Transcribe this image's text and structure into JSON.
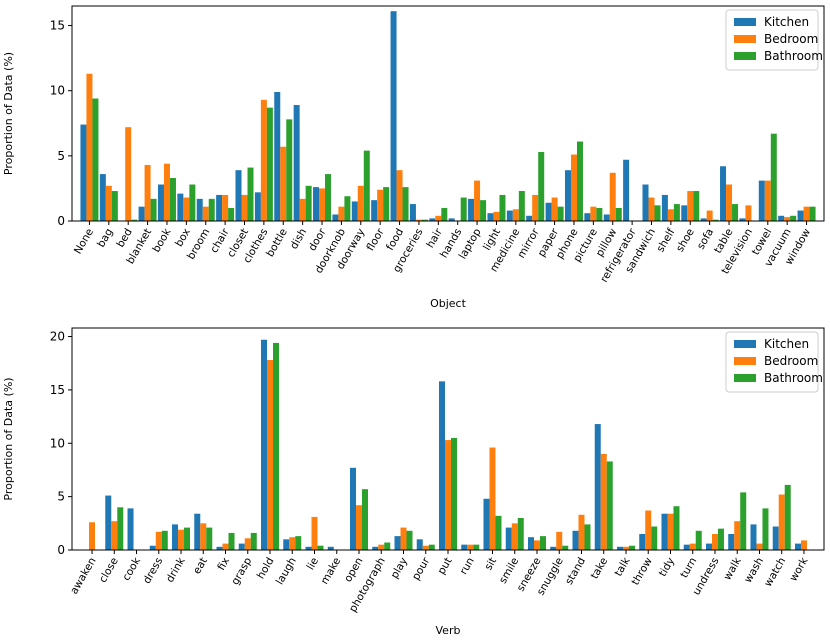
{
  "colors": {
    "Kitchen": "#1f77b4",
    "Bedroom": "#ff7f0e",
    "Bathroom": "#2ca02c"
  },
  "chart_data": [
    {
      "type": "bar",
      "xlabel": "Object",
      "ylabel": "Proportion of Data (%)",
      "ylim": [
        0,
        16.5
      ],
      "yticks": [
        0,
        5,
        10,
        15
      ],
      "legend": "top-right",
      "categories": [
        "None",
        "bag",
        "bed",
        "blanket",
        "book",
        "box",
        "broom",
        "chair",
        "closet",
        "clothes",
        "bottle",
        "dish",
        "door",
        "doorknob",
        "doorway",
        "floor",
        "food",
        "groceries",
        "hair",
        "hands",
        "laptop",
        "light",
        "medicine",
        "mirror",
        "paper",
        "phone",
        "picture",
        "pillow",
        "refrigerator",
        "sandwich",
        "shelf",
        "shoe",
        "sofa",
        "table",
        "television",
        "towel",
        "vacuum",
        "window"
      ],
      "series": [
        {
          "name": "Kitchen",
          "values": [
            7.4,
            3.6,
            0.0,
            1.1,
            2.8,
            2.1,
            1.7,
            2.0,
            3.9,
            2.2,
            9.9,
            8.9,
            2.6,
            0.5,
            1.5,
            1.6,
            16.1,
            1.3,
            0.2,
            0.2,
            1.7,
            0.6,
            0.8,
            0.4,
            1.4,
            3.9,
            0.6,
            0.5,
            4.7,
            2.8,
            2.0,
            1.2,
            0.2,
            4.2,
            0.2,
            3.1,
            0.4,
            0.8
          ]
        },
        {
          "name": "Bedroom",
          "values": [
            11.3,
            2.7,
            7.2,
            4.3,
            4.4,
            1.8,
            1.1,
            2.0,
            2.0,
            9.3,
            5.7,
            1.7,
            2.5,
            1.1,
            2.7,
            2.4,
            3.9,
            0.1,
            0.4,
            0.0,
            3.1,
            0.7,
            0.9,
            2.0,
            1.8,
            5.1,
            1.1,
            3.7,
            0.0,
            1.8,
            0.9,
            2.3,
            0.8,
            2.8,
            1.2,
            3.1,
            0.3,
            1.1
          ]
        },
        {
          "name": "Bathroom",
          "values": [
            9.4,
            2.3,
            0.1,
            1.7,
            3.3,
            2.8,
            1.7,
            1.0,
            4.1,
            8.7,
            7.8,
            2.7,
            3.6,
            1.9,
            5.4,
            2.6,
            2.6,
            0.1,
            1.0,
            1.8,
            1.6,
            2.0,
            2.3,
            5.3,
            1.1,
            6.1,
            1.0,
            1.0,
            0.0,
            1.2,
            1.3,
            2.3,
            0.1,
            1.3,
            0.0,
            6.7,
            0.4,
            1.1
          ]
        }
      ]
    },
    {
      "type": "bar",
      "xlabel": "Verb",
      "ylabel": "Proportion of Data (%)",
      "ylim": [
        0,
        20.8
      ],
      "yticks": [
        0,
        5,
        10,
        15,
        20
      ],
      "legend": "top-right",
      "categories": [
        "awaken",
        "close",
        "cook",
        "dress",
        "drink",
        "eat",
        "fix",
        "grasp",
        "hold",
        "laugh",
        "lie",
        "make",
        "open",
        "photograph",
        "play",
        "pour",
        "put",
        "run",
        "sit",
        "smile",
        "sneeze",
        "snuggle",
        "stand",
        "take",
        "talk",
        "throw",
        "tidy",
        "turn",
        "undress",
        "walk",
        "wash",
        "watch",
        "work"
      ],
      "series": [
        {
          "name": "Kitchen",
          "values": [
            0.0,
            5.1,
            3.9,
            0.4,
            2.4,
            3.4,
            0.3,
            0.6,
            19.7,
            1.0,
            0.3,
            0.3,
            7.7,
            0.3,
            1.3,
            1.0,
            15.8,
            0.5,
            4.8,
            2.1,
            1.2,
            0.3,
            1.8,
            11.8,
            0.3,
            1.5,
            3.4,
            0.5,
            0.6,
            1.5,
            2.4,
            2.2,
            0.6
          ]
        },
        {
          "name": "Bedroom",
          "values": [
            2.6,
            2.7,
            0.0,
            1.7,
            1.9,
            2.5,
            0.6,
            1.1,
            17.8,
            1.2,
            3.1,
            0.0,
            4.2,
            0.5,
            2.1,
            0.4,
            10.3,
            0.5,
            9.6,
            2.5,
            0.9,
            1.7,
            3.3,
            9.0,
            0.3,
            3.7,
            3.4,
            0.6,
            1.5,
            2.7,
            0.6,
            5.2,
            0.9
          ]
        },
        {
          "name": "Bathroom",
          "values": [
            0.0,
            4.0,
            0.0,
            1.8,
            2.1,
            2.1,
            1.6,
            1.6,
            19.4,
            1.3,
            0.4,
            0.0,
            5.7,
            0.7,
            1.8,
            0.5,
            10.5,
            0.5,
            3.2,
            3.0,
            1.3,
            0.4,
            2.4,
            8.3,
            0.4,
            2.2,
            4.1,
            1.8,
            2.0,
            5.4,
            3.9,
            6.1,
            0.0
          ]
        }
      ]
    }
  ]
}
